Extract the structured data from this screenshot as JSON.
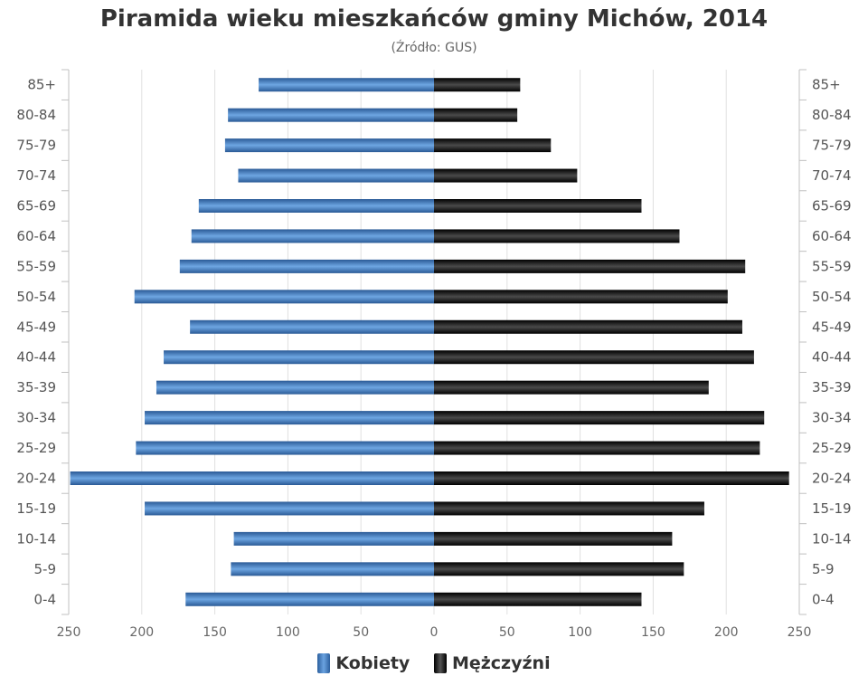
{
  "chart_data": {
    "type": "bar",
    "orientation": "horizontal",
    "title": "Piramida wieku mieszkańców gminy Michów, 2014",
    "subtitle": "(Źródło: GUS)",
    "categories": [
      "85+",
      "80-84",
      "75-79",
      "70-74",
      "65-69",
      "60-64",
      "55-59",
      "50-54",
      "45-49",
      "40-44",
      "35-39",
      "30-34",
      "25-29",
      "20-24",
      "15-19",
      "10-14",
      "5-9",
      "0-4"
    ],
    "series": [
      {
        "name": "Kobiety",
        "color": "#3d7ac0",
        "side": "left",
        "values": [
          120,
          141,
          143,
          134,
          161,
          166,
          174,
          205,
          167,
          185,
          190,
          198,
          204,
          249,
          198,
          137,
          139,
          170
        ]
      },
      {
        "name": "Mężczyźni",
        "color": "#111111",
        "side": "right",
        "values": [
          59,
          57,
          80,
          98,
          142,
          168,
          213,
          201,
          211,
          219,
          188,
          226,
          223,
          243,
          185,
          163,
          171,
          142
        ]
      }
    ],
    "xticks": [
      250,
      200,
      150,
      100,
      50,
      0,
      50,
      100,
      150,
      200,
      250
    ],
    "xlim": [
      -250,
      250
    ],
    "grid": true,
    "legend_position": "bottom-center"
  }
}
